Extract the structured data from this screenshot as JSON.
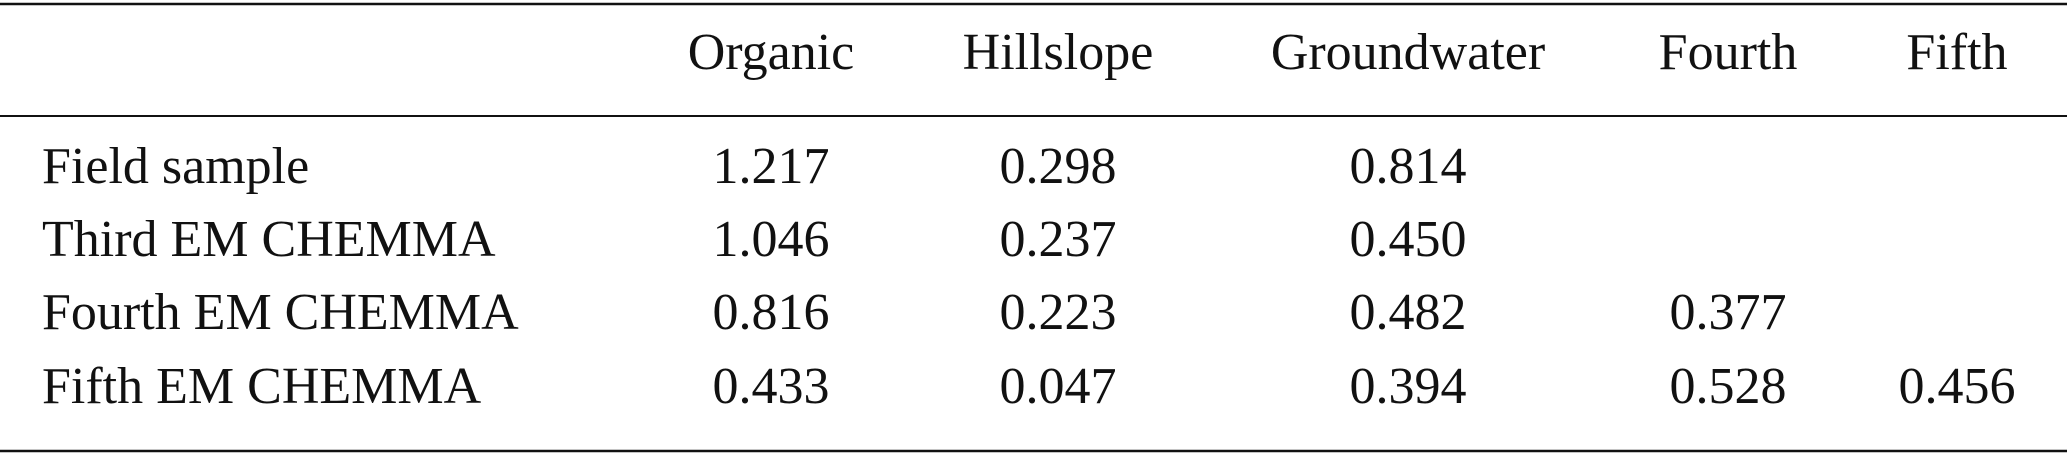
{
  "table": {
    "columns": [
      "Organic",
      "Hillslope",
      "Groundwater",
      "Fourth",
      "Fifth"
    ],
    "rows": [
      {
        "label": "Field sample",
        "values": [
          "1.217",
          "0.298",
          "0.814",
          null,
          null
        ]
      },
      {
        "label": "Third EM CHEMMA",
        "values": [
          "1.046",
          "0.237",
          "0.450",
          null,
          null
        ]
      },
      {
        "label": "Fourth EM CHEMMA",
        "values": [
          "0.816",
          "0.223",
          "0.482",
          "0.377",
          null
        ]
      },
      {
        "label": "Fifth EM CHEMMA",
        "values": [
          "0.433",
          "0.047",
          "0.394",
          "0.528",
          "0.456"
        ]
      }
    ]
  }
}
